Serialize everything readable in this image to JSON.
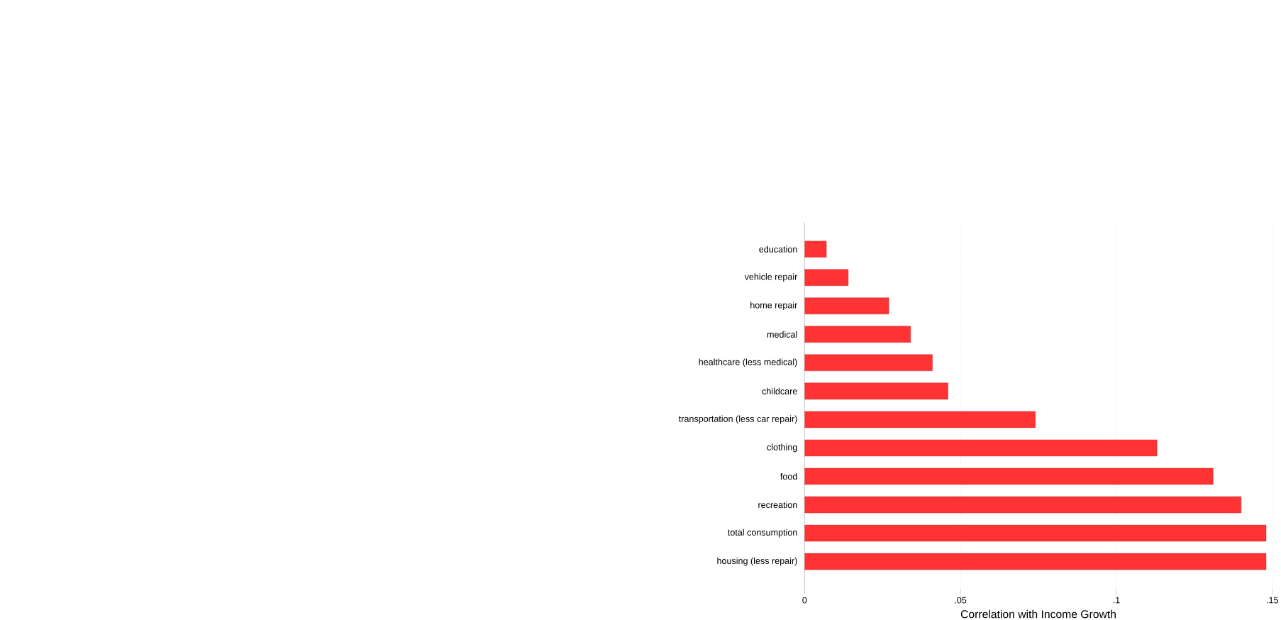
{
  "chart_data": {
    "type": "bar",
    "orientation": "horizontal",
    "xlabel": "Correlation with Income Growth",
    "categories": [
      "education",
      "vehicle repair",
      "home repair",
      "medical",
      "healthcare (less medical)",
      "childcare",
      "transportation (less car repair)",
      "clothing",
      "food",
      "recreation",
      "total consumption",
      "housing (less repair)"
    ],
    "values": [
      0.007,
      0.014,
      0.027,
      0.034,
      0.041,
      0.046,
      0.074,
      0.113,
      0.131,
      0.14,
      0.148,
      0.148
    ],
    "color": "#ff3333",
    "xlim": [
      0,
      0.15
    ],
    "xticks": [
      0,
      {
        "value": 0.05,
        "label": ".05"
      },
      {
        "value": 0.1,
        "label": ".1"
      },
      {
        "value": 0.15,
        "label": ".15"
      }
    ],
    "grid": "x"
  }
}
